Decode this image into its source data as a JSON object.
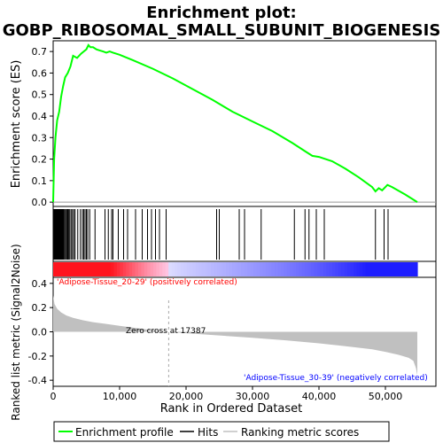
{
  "title_line1": "Enrichment plot:",
  "title_line2": "GOBP_RIBOSOMAL_SMALL_SUBUNIT_BIOGENESIS",
  "top_panel": {
    "ylabel": "Enrichment score (ES)",
    "yticks": [
      "0.0",
      "0.1",
      "0.2",
      "0.3",
      "0.4",
      "0.5",
      "0.6",
      "0.7"
    ]
  },
  "bottom_panel": {
    "ylabel": "Ranked list metric (Signal2Noise)",
    "yticks": [
      "-0.4",
      "-0.2",
      "0.0",
      "0.2",
      "0.4"
    ],
    "xlabel": "Rank in Ordered Dataset",
    "xticks": [
      "0",
      "10,000",
      "20,000",
      "30,000",
      "40,000",
      "50,000"
    ],
    "zero_cross_label": "Zero cross at 17387",
    "pos_label": "'Adipose-Tissue_20-29' (positively correlated)",
    "neg_label": "'Adipose-Tissue_30-39' (negatively correlated)"
  },
  "legend": {
    "enrichment": "Enrichment profile",
    "hits": "Hits",
    "ranking": "Ranking metric scores"
  },
  "colors": {
    "es_line": "#00ff00",
    "pos_label": "#ff0000",
    "neg_label": "#0000ff",
    "metric_fill": "#c0c0c0"
  },
  "chart_data": {
    "type": "line",
    "x_max": 54800,
    "es_ylim": [
      -0.02,
      0.75
    ],
    "metric_ylim": [
      -0.45,
      0.45
    ],
    "zero_cross": 17387,
    "enrichment_profile": {
      "x": [
        0,
        150,
        350,
        600,
        900,
        1200,
        1500,
        1800,
        2200,
        2600,
        3000,
        3600,
        4200,
        4600,
        5000,
        5300,
        5600,
        6000,
        6500,
        7000,
        7500,
        8000,
        8500,
        9000,
        10000,
        12000,
        15000,
        18000,
        21000,
        24000,
        27000,
        30000,
        33000,
        36000,
        38000,
        39000,
        40000,
        41000,
        42000,
        44000,
        46000,
        48000,
        48500,
        49000,
        49500,
        50000,
        50300,
        51000,
        53000,
        54800
      ],
      "y": [
        0.0,
        0.2,
        0.3,
        0.38,
        0.42,
        0.49,
        0.54,
        0.58,
        0.6,
        0.63,
        0.68,
        0.67,
        0.69,
        0.7,
        0.71,
        0.73,
        0.72,
        0.72,
        0.71,
        0.705,
        0.7,
        0.695,
        0.7,
        0.695,
        0.685,
        0.66,
        0.62,
        0.575,
        0.525,
        0.475,
        0.42,
        0.375,
        0.33,
        0.275,
        0.235,
        0.215,
        0.21,
        0.2,
        0.19,
        0.155,
        0.115,
        0.07,
        0.05,
        0.065,
        0.055,
        0.07,
        0.08,
        0.07,
        0.035,
        0.0
      ]
    },
    "hits": [
      80,
      160,
      240,
      320,
      400,
      480,
      560,
      640,
      720,
      800,
      900,
      1000,
      1100,
      1200,
      1300,
      1400,
      1500,
      1600,
      1750,
      1900,
      2050,
      2200,
      2350,
      2500,
      2700,
      2900,
      3100,
      3300,
      3700,
      4100,
      4400,
      4600,
      4800,
      5000,
      5200,
      5500,
      6300,
      7800,
      8300,
      8800,
      9000,
      9800,
      10600,
      11200,
      12400,
      13400,
      14200,
      14800,
      15400,
      16000,
      17000,
      24600,
      25000,
      28000,
      28800,
      31300,
      36300,
      37900,
      38500,
      39600,
      40800,
      48500,
      49800,
      50400
    ],
    "metric": {
      "x": [
        0,
        200,
        600,
        1200,
        2000,
        3000,
        4500,
        6000,
        8000,
        10000,
        12000,
        14000,
        16000,
        17387,
        20000,
        25000,
        30000,
        35000,
        40000,
        45000,
        48000,
        50000,
        52000,
        53500,
        54200,
        54600,
        54800
      ],
      "y": [
        0.3,
        0.23,
        0.19,
        0.16,
        0.135,
        0.115,
        0.095,
        0.08,
        0.065,
        0.05,
        0.035,
        0.02,
        0.008,
        0.0,
        -0.012,
        -0.03,
        -0.05,
        -0.07,
        -0.095,
        -0.125,
        -0.145,
        -0.165,
        -0.19,
        -0.215,
        -0.24,
        -0.3,
        -0.36
      ]
    }
  }
}
